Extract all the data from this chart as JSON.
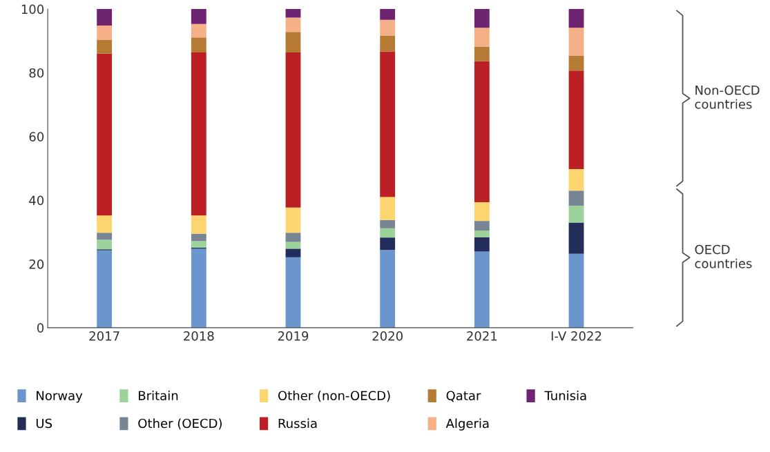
{
  "chart_data": {
    "type": "bar",
    "stacked": true,
    "categories": [
      "2017",
      "2018",
      "2019",
      "2020",
      "2021",
      "I-V 2022"
    ],
    "series": [
      {
        "name": "Norway",
        "color": "#6a96cd",
        "values": [
          24.3,
          24.8,
          22.1,
          24.4,
          23.9,
          23.2
        ]
      },
      {
        "name": "US",
        "color": "#222d5b",
        "values": [
          0.3,
          0.3,
          2.7,
          3.9,
          4.5,
          9.8
        ]
      },
      {
        "name": "Britain",
        "color": "#9dd29b",
        "values": [
          3.0,
          2.1,
          2.1,
          2.9,
          2.1,
          5.3
        ]
      },
      {
        "name": "Other (OECD)",
        "color": "#778595",
        "values": [
          2.2,
          2.3,
          2.9,
          2.6,
          3.0,
          4.7
        ]
      },
      {
        "name": "Other (non-OECD)",
        "color": "#fdd56e",
        "values": [
          5.4,
          5.7,
          7.9,
          7.2,
          5.9,
          6.8
        ]
      },
      {
        "name": "Russia",
        "color": "#bb2025",
        "values": [
          50.8,
          51.2,
          48.7,
          45.7,
          44.2,
          30.9
        ]
      },
      {
        "name": "Qatar",
        "color": "#b57b34",
        "values": [
          4.4,
          4.7,
          6.4,
          5.0,
          4.6,
          4.7
        ]
      },
      {
        "name": "Algeria",
        "color": "#f6b088",
        "values": [
          4.4,
          4.2,
          4.5,
          4.9,
          5.9,
          8.7
        ]
      },
      {
        "name": "Tunisia",
        "color": "#6e2470",
        "values": [
          5.2,
          4.7,
          2.7,
          3.4,
          5.9,
          5.9
        ]
      }
    ],
    "ylim": [
      0,
      100
    ],
    "yticks": [
      0,
      20,
      40,
      60,
      80,
      100
    ],
    "annotations": [
      "OECD countries",
      "Non-OECD countries"
    ],
    "legend": "bottom",
    "grid": false
  }
}
